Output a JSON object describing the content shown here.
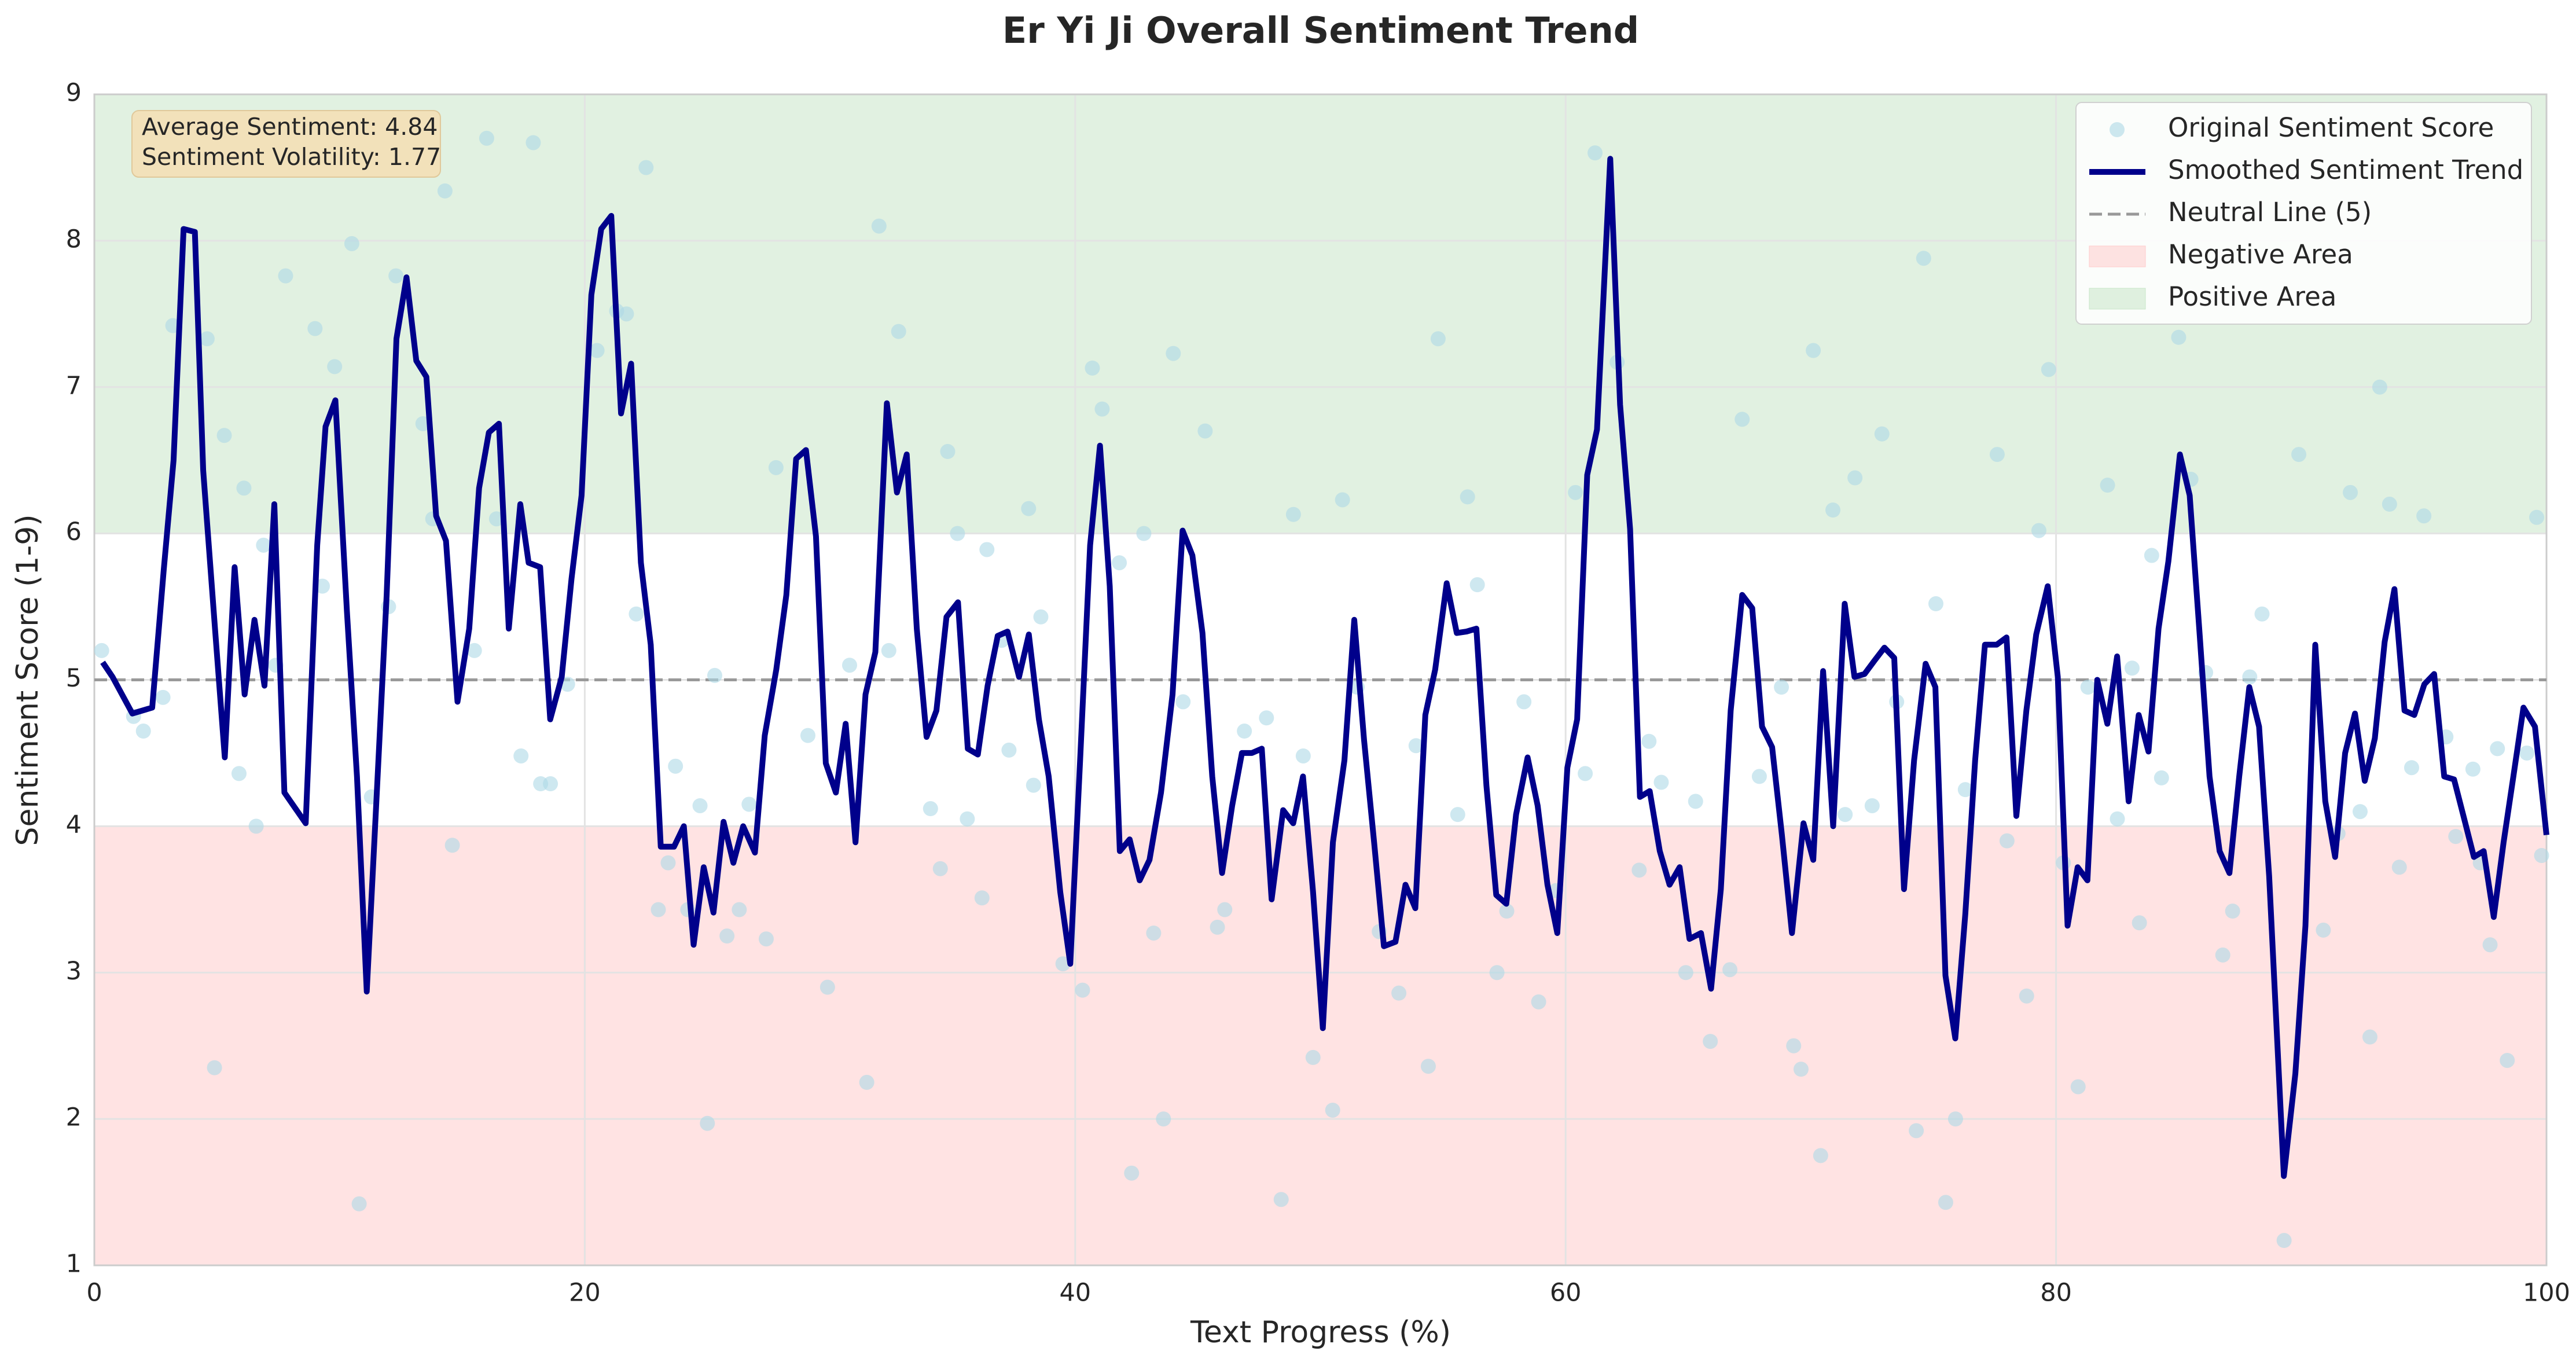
{
  "chart_data": {
    "type": "line",
    "title": "Er Yi Ji Overall Sentiment Trend",
    "xlabel": "Text Progress (%)",
    "ylabel": "Sentiment Score (1-9)",
    "xlim": [
      0,
      100
    ],
    "ylim": [
      1,
      9
    ],
    "xticks": [
      0,
      20,
      40,
      60,
      80,
      100
    ],
    "yticks": [
      1,
      2,
      3,
      4,
      5,
      6,
      7,
      8,
      9
    ],
    "grid": true,
    "legend": "upper right",
    "annotations": [
      "Average Sentiment: 4.84",
      "Sentiment Volatility: 1.77"
    ],
    "bands": [
      {
        "name": "Negative Area",
        "from": 1,
        "to": 4,
        "color": "#ffcccc"
      },
      {
        "name": "Positive Area",
        "from": 6,
        "to": 9,
        "color": "#c8e6c9"
      }
    ],
    "reference_lines": [
      {
        "name": "Neutral Line (5)",
        "value": 5,
        "color": "#999999"
      }
    ],
    "series": [
      {
        "name": "Original Sentiment Score",
        "type": "scatter",
        "color": "#add8e6",
        "x": [
          0.3,
          1.6,
          2.0,
          2.8,
          3.2,
          4.6,
          4.9,
          5.3,
          5.9,
          6.1,
          6.6,
          6.9,
          7.4,
          7.8,
          9.0,
          9.3,
          9.8,
          10.5,
          10.8,
          11.3,
          12.0,
          12.3,
          13.4,
          13.8,
          14.3,
          14.6,
          15.5,
          16.0,
          16.4,
          17.4,
          17.9,
          18.2,
          18.6,
          19.3,
          20.5,
          21.3,
          21.7,
          22.1,
          22.5,
          23.0,
          23.4,
          23.7,
          24.2,
          24.7,
          25.0,
          25.3,
          25.8,
          26.3,
          26.7,
          27.4,
          27.8,
          29.1,
          29.9,
          30.8,
          31.5,
          32.0,
          32.4,
          32.8,
          34.1,
          34.5,
          34.8,
          35.2,
          35.6,
          36.2,
          36.4,
          37.0,
          37.3,
          38.1,
          38.3,
          38.6,
          39.5,
          40.3,
          40.7,
          41.1,
          41.8,
          42.3,
          42.8,
          43.2,
          43.6,
          44.0,
          44.4,
          45.3,
          45.8,
          46.1,
          46.9,
          47.8,
          48.4,
          48.9,
          49.3,
          49.7,
          50.5,
          50.9,
          51.5,
          52.4,
          53.2,
          53.9,
          54.4,
          54.8,
          55.6,
          56.0,
          56.4,
          57.2,
          57.6,
          58.3,
          58.9,
          59.6,
          60.4,
          60.8,
          61.2,
          62.1,
          63.0,
          63.4,
          63.9,
          64.9,
          65.3,
          65.9,
          66.7,
          67.2,
          67.9,
          68.8,
          69.3,
          69.6,
          70.1,
          70.4,
          70.9,
          71.4,
          71.8,
          72.5,
          72.9,
          73.5,
          74.3,
          74.6,
          75.1,
          75.5,
          75.9,
          76.3,
          77.6,
          78.0,
          78.8,
          79.3,
          79.7,
          80.3,
          80.9,
          81.3,
          82.1,
          82.5,
          83.1,
          83.4,
          83.9,
          84.3,
          85.0,
          85.5,
          86.1,
          86.8,
          87.2,
          87.9,
          88.4,
          89.3,
          89.9,
          90.9,
          91.5,
          92.0,
          92.4,
          92.8,
          93.2,
          93.6,
          94.0,
          94.5,
          95.0,
          95.9,
          96.3,
          97.0,
          97.3,
          97.7,
          98.0,
          98.4,
          99.2,
          99.6,
          99.8
        ],
        "values": [
          5.2,
          4.75,
          4.65,
          4.88,
          7.42,
          7.33,
          2.35,
          6.67,
          4.36,
          6.31,
          4.0,
          5.92,
          5.1,
          7.76,
          7.4,
          5.64,
          7.14,
          7.98,
          1.42,
          4.2,
          5.5,
          7.76,
          6.75,
          6.1,
          8.34,
          3.87,
          5.2,
          8.7,
          6.1,
          4.48,
          8.67,
          4.29,
          4.29,
          4.97,
          7.25,
          7.52,
          7.5,
          5.45,
          8.5,
          3.43,
          3.75,
          4.41,
          3.43,
          4.14,
          1.97,
          5.03,
          3.25,
          3.43,
          4.15,
          3.23,
          6.45,
          4.62,
          2.9,
          5.1,
          2.25,
          8.1,
          5.2,
          7.38,
          4.12,
          3.71,
          6.56,
          6.0,
          4.05,
          3.51,
          5.89,
          5.27,
          4.52,
          6.17,
          4.28,
          5.43,
          3.06,
          2.88,
          7.13,
          6.85,
          5.8,
          1.63,
          6.0,
          3.27,
          2.0,
          7.23,
          4.85,
          6.7,
          3.31,
          3.43,
          4.65,
          4.74,
          1.45,
          6.13,
          4.48,
          2.42,
          2.06,
          6.23,
          4.95,
          3.28,
          2.86,
          4.55,
          2.36,
          7.33,
          4.08,
          6.25,
          5.65,
          3.0,
          3.42,
          4.85,
          2.8,
          3.56,
          6.28,
          4.36,
          8.6,
          7.17,
          3.7,
          4.58,
          4.3,
          3.0,
          4.17,
          2.53,
          3.02,
          6.78,
          4.34,
          4.95,
          2.5,
          2.34,
          7.25,
          1.75,
          6.16,
          4.08,
          6.38,
          4.14,
          6.68,
          4.85,
          1.92,
          7.88,
          5.52,
          1.43,
          2.0,
          4.25,
          6.54,
          3.9,
          2.84,
          6.02,
          7.12,
          3.75,
          2.22,
          4.95,
          6.33,
          4.05,
          5.08,
          3.34,
          5.85,
          4.33,
          7.34,
          6.37,
          5.05,
          3.12,
          3.42,
          5.02,
          5.45,
          1.17,
          6.54,
          3.29,
          3.95,
          6.28,
          4.1,
          2.56,
          7.0,
          6.2,
          3.72,
          4.4,
          6.12,
          4.61,
          3.93,
          4.39,
          3.75,
          3.19,
          4.53,
          2.4,
          4.5,
          6.11,
          3.8
        ]
      },
      {
        "name": "Smoothed Sentiment Trend",
        "type": "line",
        "color": "#00008b",
        "x": [
          0.34,
          0.74,
          1.55,
          2.36,
          2.83,
          3.23,
          3.64,
          4.1,
          4.44,
          4.92,
          5.32,
          5.72,
          6.13,
          6.53,
          6.94,
          7.34,
          7.75,
          8.62,
          9.09,
          9.43,
          9.83,
          10.3,
          10.71,
          11.11,
          11.52,
          11.92,
          12.32,
          12.73,
          13.13,
          13.54,
          13.94,
          14.34,
          14.81,
          15.29,
          15.69,
          16.09,
          16.5,
          16.9,
          17.37,
          17.71,
          18.18,
          18.59,
          19.06,
          19.46,
          19.87,
          20.27,
          20.67,
          21.08,
          21.48,
          21.89,
          22.29,
          22.69,
          23.1,
          23.64,
          24.04,
          24.44,
          24.85,
          25.25,
          25.66,
          26.06,
          26.46,
          26.94,
          27.34,
          27.81,
          28.22,
          28.62,
          29.02,
          29.43,
          29.83,
          30.24,
          30.64,
          31.04,
          31.45,
          31.85,
          32.32,
          32.73,
          33.13,
          33.54,
          33.94,
          34.34,
          34.75,
          35.22,
          35.62,
          36.03,
          36.43,
          36.84,
          37.24,
          37.71,
          38.11,
          38.52,
          38.92,
          39.39,
          39.8,
          40.2,
          40.61,
          41.01,
          41.41,
          41.82,
          42.22,
          42.63,
          43.03,
          43.5,
          43.97,
          44.38,
          44.78,
          45.19,
          45.59,
          45.99,
          46.4,
          46.8,
          47.2,
          47.61,
          48.01,
          48.48,
          48.89,
          49.29,
          49.7,
          50.1,
          50.51,
          50.98,
          51.38,
          51.78,
          52.19,
          52.59,
          53.06,
          53.47,
          53.87,
          54.28,
          54.68,
          55.15,
          55.56,
          55.96,
          56.36,
          56.77,
          57.17,
          57.58,
          57.98,
          58.45,
          58.86,
          59.26,
          59.66,
          60.07,
          60.47,
          60.88,
          61.28,
          61.82,
          62.22,
          62.63,
          63.03,
          63.43,
          63.84,
          64.24,
          64.65,
          65.05,
          65.52,
          65.93,
          66.33,
          66.73,
          67.2,
          67.61,
          68.01,
          68.42,
          68.82,
          69.23,
          69.7,
          70.1,
          70.5,
          70.91,
          71.38,
          71.78,
          72.19,
          72.59,
          73.0,
          73.4,
          73.8,
          74.21,
          74.68,
          75.08,
          75.49,
          75.89,
          76.3,
          76.7,
          77.1,
          77.58,
          77.98,
          78.38,
          78.79,
          79.19,
          79.66,
          80.07,
          80.47,
          80.88,
          81.28,
          81.68,
          82.09,
          82.49,
          82.96,
          83.37,
          83.77,
          84.18,
          84.58,
          85.05,
          85.45,
          85.86,
          86.26,
          86.67,
          87.07,
          87.47,
          87.88,
          88.28,
          88.69,
          89.29,
          89.76,
          90.17,
          90.57,
          90.98,
          91.38,
          91.79,
          92.19,
          92.59,
          93.0,
          93.4,
          93.8,
          94.21,
          94.61,
          95.02,
          95.42,
          95.83,
          96.23,
          96.63,
          97.04,
          97.44,
          97.85,
          98.25,
          98.65,
          99.06,
          99.53,
          100
        ],
        "values": [
          5.12,
          5.02,
          4.77,
          4.81,
          5.75,
          6.5,
          8.08,
          8.06,
          6.43,
          5.35,
          4.47,
          5.77,
          4.9,
          5.41,
          4.96,
          6.2,
          4.23,
          4.02,
          5.92,
          6.73,
          6.91,
          5.47,
          4.34,
          2.87,
          4.23,
          5.58,
          7.33,
          7.75,
          7.18,
          7.07,
          6.12,
          5.95,
          4.85,
          5.35,
          6.31,
          6.69,
          6.75,
          5.35,
          6.2,
          5.8,
          5.77,
          4.73,
          5.02,
          5.69,
          6.26,
          7.63,
          8.08,
          8.17,
          6.82,
          7.16,
          5.8,
          5.24,
          3.86,
          3.86,
          4.0,
          3.19,
          3.72,
          3.41,
          4.03,
          3.75,
          4.0,
          3.82,
          4.62,
          5.07,
          5.58,
          6.51,
          6.57,
          5.98,
          4.43,
          4.23,
          4.7,
          3.89,
          4.9,
          5.19,
          6.89,
          6.28,
          6.54,
          5.35,
          4.61,
          4.79,
          5.43,
          5.53,
          4.53,
          4.49,
          4.96,
          5.3,
          5.33,
          5.02,
          5.31,
          4.73,
          4.34,
          3.55,
          3.06,
          4.45,
          5.92,
          6.6,
          5.64,
          3.83,
          3.91,
          3.63,
          3.77,
          4.23,
          4.9,
          6.02,
          5.85,
          5.32,
          4.34,
          3.68,
          4.14,
          4.5,
          4.5,
          4.53,
          3.5,
          4.11,
          4.02,
          4.34,
          3.55,
          2.62,
          3.89,
          4.45,
          5.41,
          4.59,
          3.89,
          3.18,
          3.21,
          3.6,
          3.44,
          4.76,
          5.07,
          5.66,
          5.32,
          5.33,
          5.35,
          4.28,
          3.53,
          3.47,
          4.08,
          4.47,
          4.14,
          3.6,
          3.27,
          4.4,
          4.73,
          6.4,
          6.71,
          8.56,
          6.88,
          6.03,
          4.2,
          4.24,
          3.83,
          3.6,
          3.72,
          3.23,
          3.27,
          2.89,
          3.57,
          4.79,
          5.58,
          5.49,
          4.68,
          4.54,
          3.94,
          3.27,
          4.02,
          3.77,
          5.06,
          4.0,
          5.52,
          5.02,
          5.04,
          5.13,
          5.22,
          5.15,
          3.57,
          4.45,
          5.11,
          4.95,
          2.98,
          2.55,
          3.4,
          4.45,
          5.24,
          5.24,
          5.29,
          4.07,
          4.79,
          5.31,
          5.64,
          5.02,
          3.32,
          3.72,
          3.63,
          5.0,
          4.7,
          5.16,
          4.17,
          4.76,
          4.51,
          5.35,
          5.81,
          6.54,
          6.26,
          5.3,
          4.34,
          3.83,
          3.68,
          4.34,
          4.95,
          4.68,
          3.66,
          1.61,
          2.31,
          3.32,
          5.24,
          4.17,
          3.79,
          4.5,
          4.77,
          4.31,
          4.6,
          5.26,
          5.62,
          4.79,
          4.76,
          4.97,
          5.04,
          4.34,
          4.32,
          4.06,
          3.79,
          3.83,
          3.38,
          3.89,
          4.34,
          4.81,
          4.68,
          3.94
        ]
      }
    ]
  }
}
